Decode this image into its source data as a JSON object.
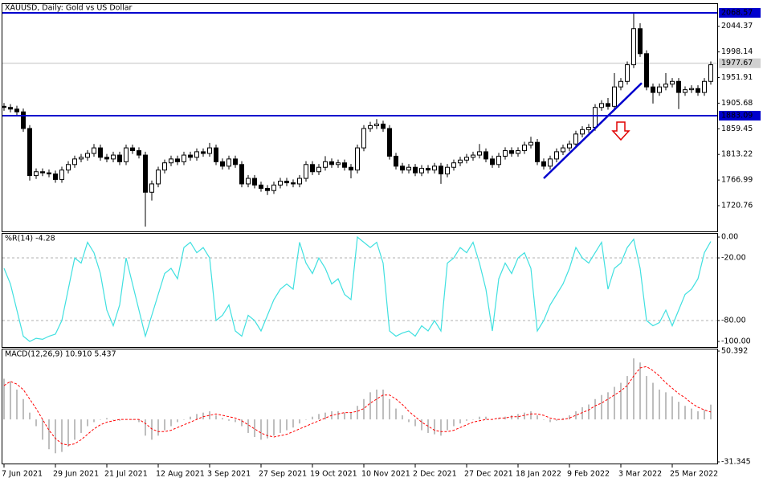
{
  "chart_data": [
    {
      "type": "candlestick",
      "title": "XAUUSD, Daily:  Gold vs US Dollar",
      "categories": [
        "7 Jun 2021",
        null,
        null,
        null,
        null,
        null,
        null,
        null,
        "29 Jun 2021",
        null,
        null,
        null,
        null,
        null,
        null,
        null,
        "21 Jul 2021",
        null,
        null,
        null,
        null,
        null,
        null,
        null,
        "12 Aug 2021",
        null,
        null,
        null,
        null,
        null,
        null,
        null,
        "3 Sep 2021",
        null,
        null,
        null,
        null,
        null,
        null,
        null,
        "27 Sep 2021",
        null,
        null,
        null,
        null,
        null,
        null,
        null,
        "19 Oct 2021",
        null,
        null,
        null,
        null,
        null,
        null,
        null,
        "10 Nov 2021",
        null,
        null,
        null,
        null,
        null,
        null,
        null,
        "2 Dec 2021",
        null,
        null,
        null,
        null,
        null,
        null,
        null,
        "27 Dec 2021",
        null,
        null,
        null,
        null,
        null,
        null,
        null,
        "18 Jan 2022",
        null,
        null,
        null,
        null,
        null,
        null,
        null,
        "9 Feb 2022",
        null,
        null,
        null,
        null,
        null,
        null,
        null,
        "3 Mar 2022",
        null,
        null,
        null,
        null,
        null,
        null,
        null,
        "25 Mar 2022",
        null,
        null,
        null,
        null,
        null,
        null
      ],
      "open": [
        1900,
        1898,
        1895,
        1890,
        1860,
        1775,
        1782,
        1780,
        1778,
        1768,
        1785,
        1795,
        1805,
        1808,
        1815,
        1825,
        1808,
        1805,
        1812,
        1800,
        1825,
        1820,
        1812,
        1745,
        1760,
        1785,
        1798,
        1805,
        1800,
        1812,
        1808,
        1818,
        1815,
        1825,
        1800,
        1792,
        1805,
        1795,
        1760,
        1770,
        1758,
        1752,
        1748,
        1758,
        1765,
        1762,
        1760,
        1770,
        1795,
        1782,
        1790,
        1800,
        1795,
        1798,
        1790,
        1785,
        1825,
        1860,
        1865,
        1868,
        1860,
        1810,
        1792,
        1785,
        1790,
        1780,
        1788,
        1785,
        1792,
        1778,
        1790,
        1798,
        1803,
        1808,
        1812,
        1818,
        1805,
        1795,
        1810,
        1820,
        1815,
        1820,
        1830,
        1835,
        1800,
        1792,
        1805,
        1818,
        1825,
        1832,
        1850,
        1858,
        1862,
        1898,
        1905,
        1900,
        1935,
        1945,
        1975,
        2040,
        1995,
        1935,
        1925,
        1935,
        1940,
        1945,
        1925,
        1930,
        1932,
        1925,
        1945
      ],
      "high": [
        1906,
        1904,
        1901,
        1896,
        1866,
        1788,
        1788,
        1786,
        1784,
        1791,
        1801,
        1811,
        1814,
        1821,
        1832,
        1831,
        1814,
        1818,
        1818,
        1831,
        1831,
        1826,
        1818,
        1766,
        1791,
        1804,
        1811,
        1811,
        1818,
        1818,
        1824,
        1824,
        1834,
        1831,
        1806,
        1811,
        1811,
        1801,
        1776,
        1776,
        1764,
        1758,
        1764,
        1771,
        1771,
        1768,
        1776,
        1801,
        1801,
        1796,
        1810,
        1806,
        1804,
        1804,
        1796,
        1831,
        1866,
        1872,
        1877,
        1874,
        1866,
        1816,
        1798,
        1796,
        1796,
        1794,
        1794,
        1798,
        1798,
        1796,
        1804,
        1809,
        1814,
        1818,
        1832,
        1824,
        1811,
        1816,
        1826,
        1826,
        1826,
        1836,
        1845,
        1841,
        1806,
        1811,
        1824,
        1831,
        1838,
        1856,
        1864,
        1868,
        1904,
        1911,
        1915,
        1960,
        1951,
        1981,
        2068,
        2050,
        2001,
        1941,
        1941,
        1960,
        1951,
        1951,
        1936,
        1938,
        1938,
        1951,
        1981
      ],
      "low": [
        1892,
        1889,
        1884,
        1854,
        1766,
        1769,
        1774,
        1772,
        1762,
        1762,
        1779,
        1789,
        1799,
        1802,
        1809,
        1802,
        1799,
        1799,
        1794,
        1794,
        1814,
        1806,
        1683,
        1730,
        1754,
        1779,
        1792,
        1794,
        1794,
        1802,
        1802,
        1809,
        1809,
        1794,
        1786,
        1786,
        1789,
        1754,
        1754,
        1752,
        1746,
        1740,
        1742,
        1752,
        1756,
        1754,
        1754,
        1764,
        1776,
        1776,
        1784,
        1789,
        1789,
        1784,
        1770,
        1779,
        1819,
        1854,
        1859,
        1854,
        1804,
        1786,
        1779,
        1779,
        1774,
        1774,
        1779,
        1779,
        1760,
        1772,
        1784,
        1792,
        1797,
        1802,
        1806,
        1799,
        1789,
        1789,
        1804,
        1809,
        1809,
        1814,
        1824,
        1794,
        1786,
        1786,
        1799,
        1812,
        1819,
        1826,
        1844,
        1852,
        1856,
        1892,
        1894,
        1894,
        1929,
        1939,
        1969,
        1989,
        1929,
        1905,
        1919,
        1929,
        1934,
        1895,
        1919,
        1924,
        1919,
        1919,
        1939
      ],
      "close": [
        1898,
        1895,
        1890,
        1860,
        1775,
        1782,
        1780,
        1778,
        1768,
        1785,
        1795,
        1805,
        1808,
        1815,
        1825,
        1808,
        1805,
        1812,
        1800,
        1825,
        1820,
        1812,
        1745,
        1760,
        1785,
        1798,
        1805,
        1800,
        1812,
        1808,
        1818,
        1815,
        1825,
        1800,
        1792,
        1805,
        1795,
        1760,
        1770,
        1758,
        1752,
        1748,
        1758,
        1765,
        1762,
        1760,
        1770,
        1795,
        1782,
        1790,
        1800,
        1795,
        1798,
        1790,
        1785,
        1825,
        1860,
        1865,
        1868,
        1860,
        1810,
        1792,
        1785,
        1790,
        1780,
        1788,
        1785,
        1792,
        1778,
        1790,
        1798,
        1803,
        1808,
        1812,
        1818,
        1805,
        1795,
        1810,
        1820,
        1815,
        1820,
        1830,
        1835,
        1800,
        1792,
        1805,
        1818,
        1825,
        1832,
        1850,
        1858,
        1862,
        1898,
        1905,
        1900,
        1935,
        1945,
        1975,
        2040,
        1995,
        1935,
        1925,
        1935,
        1940,
        1945,
        1925,
        1930,
        1932,
        1925,
        1945,
        1975
      ],
      "up_color": "#ffffff",
      "down_color": "#000000",
      "ylim": [
        1674.4,
        2086
      ],
      "yticks": [
        2044.37,
        1998.14,
        1951.91,
        1905.68,
        1859.45,
        1813.22,
        1766.99,
        1720.76
      ],
      "hlines": [
        2068.57,
        1883.09
      ],
      "hline_color": "#0000cd",
      "last_price": 1977.67,
      "trendline": {
        "start": [
          84,
          1770
        ],
        "end": [
          99.25,
          1942
        ]
      }
    },
    {
      "type": "line",
      "title": "%R(14) -4.28",
      "color": "#40e0e0",
      "values": [
        -30,
        -45,
        -70,
        -95,
        -100,
        -97,
        -98,
        -95,
        -93,
        -80,
        -50,
        -20,
        -25,
        -5,
        -15,
        -35,
        -70,
        -85,
        -65,
        -20,
        -45,
        -70,
        -95,
        -75,
        -55,
        -35,
        -30,
        -40,
        -10,
        -5,
        -15,
        -10,
        -20,
        -80,
        -75,
        -65,
        -90,
        -95,
        -75,
        -80,
        -90,
        -75,
        -60,
        -50,
        -45,
        -50,
        -5,
        -25,
        -35,
        -20,
        -30,
        -45,
        -40,
        -55,
        -60,
        0,
        -5,
        -10,
        -5,
        -25,
        -90,
        -95,
        -92,
        -90,
        -95,
        -85,
        -90,
        -80,
        -90,
        -25,
        -20,
        -10,
        -15,
        -5,
        -25,
        -50,
        -90,
        -40,
        -25,
        -35,
        -20,
        -15,
        -30,
        -90,
        -80,
        -65,
        -55,
        -45,
        -30,
        -10,
        -20,
        -25,
        -15,
        -5,
        -50,
        -30,
        -25,
        -10,
        -2,
        -30,
        -80,
        -85,
        -82,
        -70,
        -85,
        -70,
        -55,
        -50,
        -40,
        -15,
        -4.28
      ],
      "ylim": [
        -105.4,
        3.9
      ],
      "yticks": [
        {
          "value": 0,
          "label": "0.00"
        },
        {
          "value": -20,
          "label": "-20.00"
        },
        {
          "value": -80,
          "label": "-80.00"
        },
        {
          "value": -100,
          "label": "-100.00"
        }
      ],
      "levels": [
        -20,
        -80
      ]
    },
    {
      "type": "macd",
      "title": "MACD(12,26,9) 10.910 5.437",
      "hist_color": "#a9a9a9",
      "signal_color": "#ff0000",
      "histogram": [
        30,
        28,
        22,
        15,
        5,
        -5,
        -15,
        -22,
        -25,
        -24,
        -20,
        -15,
        -10,
        -5,
        -2,
        0,
        1,
        0,
        -1,
        0,
        0,
        -2,
        -12,
        -15,
        -12,
        -8,
        -5,
        -2,
        0,
        2,
        4,
        5,
        6,
        3,
        1,
        -1,
        -2,
        -5,
        -10,
        -13,
        -15,
        -14,
        -12,
        -10,
        -8,
        -6,
        -3,
        0,
        2,
        4,
        5,
        6,
        6,
        5,
        5,
        10,
        15,
        20,
        22,
        22,
        15,
        8,
        3,
        -2,
        -5,
        -8,
        -10,
        -11,
        -12,
        -8,
        -5,
        -3,
        -1,
        0,
        2,
        2,
        0,
        1,
        2,
        3,
        4,
        5,
        6,
        3,
        0,
        -2,
        -1,
        1,
        3,
        6,
        9,
        11,
        15,
        18,
        20,
        24,
        27,
        32,
        45,
        42,
        32,
        27,
        22,
        20,
        17,
        13,
        10,
        8,
        6,
        7,
        10.91
      ],
      "signal": [
        25,
        28,
        26,
        22,
        15,
        8,
        0,
        -8,
        -14,
        -18,
        -19,
        -18,
        -15,
        -11,
        -7,
        -4,
        -2,
        -1,
        0,
        0,
        0,
        0,
        -3,
        -7,
        -9,
        -9,
        -8,
        -6,
        -4,
        -2,
        0,
        2,
        3,
        4,
        3,
        2,
        1,
        -1,
        -4,
        -7,
        -10,
        -12,
        -13,
        -12,
        -11,
        -9,
        -7,
        -5,
        -3,
        -1,
        1,
        3,
        4,
        5,
        5,
        6,
        8,
        12,
        15,
        18,
        18,
        15,
        11,
        6,
        2,
        -2,
        -5,
        -8,
        -9,
        -9,
        -8,
        -6,
        -4,
        -2,
        -1,
        0,
        0,
        1,
        1,
        2,
        2,
        3,
        4,
        4,
        3,
        1,
        0,
        0,
        1,
        3,
        5,
        7,
        10,
        12,
        15,
        18,
        21,
        25,
        32,
        38,
        39,
        36,
        32,
        27,
        23,
        19,
        16,
        12,
        9,
        7,
        5.437
      ],
      "ylim": [
        -32.55,
        52.2
      ],
      "yticks": [
        50.392,
        -31.345
      ]
    }
  ]
}
